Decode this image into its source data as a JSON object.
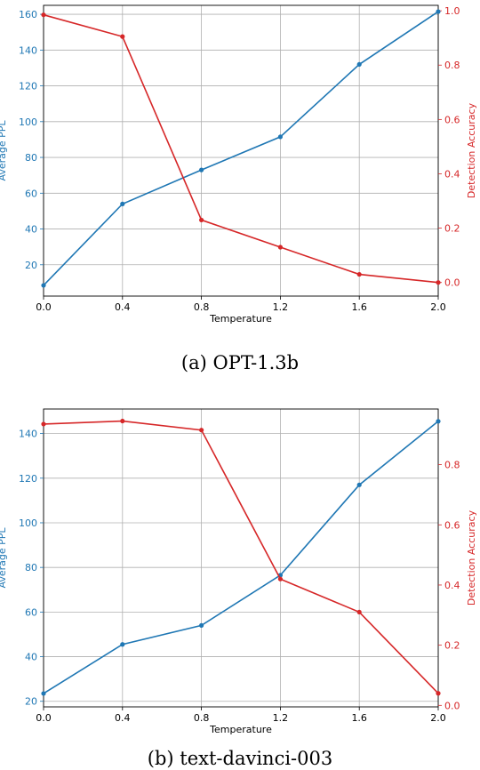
{
  "colors": {
    "ppl": "#1f77b4",
    "acc": "#d62728",
    "grid": "#b0b0b0"
  },
  "chart_data": [
    {
      "type": "line",
      "caption": "(a) OPT-1.3b",
      "xlabel": "Temperature",
      "ylabel_left": "Average PPL",
      "ylabel_right": "Detection Accuracy",
      "x": [
        0.0,
        0.4,
        0.8,
        1.2,
        1.6,
        2.0
      ],
      "x_tick_labels": [
        "0.0",
        "0.4",
        "0.8",
        "1.2",
        "1.6",
        "2.0"
      ],
      "ylim_left": [
        2.5,
        165
      ],
      "yticks_left": [
        "20",
        "40",
        "60",
        "80",
        "100",
        "120",
        "140",
        "160"
      ],
      "ylim_right": [
        -0.05,
        1.02
      ],
      "yticks_right": [
        "0.0",
        "0.2",
        "0.4",
        "0.6",
        "0.8",
        "1.0"
      ],
      "grid": true,
      "series": [
        {
          "axis": "left",
          "color": "#1f77b4",
          "values": [
            8.5,
            54,
            73,
            91.5,
            132,
            161.5
          ]
        },
        {
          "axis": "right",
          "color": "#d62728",
          "values": [
            0.985,
            0.905,
            0.23,
            0.13,
            0.03,
            0.0
          ]
        }
      ]
    },
    {
      "type": "line",
      "caption": "(b) text-davinci-003",
      "xlabel": "Temperature",
      "ylabel_left": "Average PPL",
      "ylabel_right": "Detection Accuracy",
      "x": [
        0.0,
        0.4,
        0.8,
        1.2,
        1.6,
        2.0
      ],
      "x_tick_labels": [
        "0.0",
        "0.4",
        "0.8",
        "1.2",
        "1.6",
        "2.0"
      ],
      "ylim_left": [
        17.5,
        151
      ],
      "yticks_left": [
        "20",
        "40",
        "60",
        "80",
        "100",
        "120",
        "140"
      ],
      "ylim_right": [
        -0.005,
        0.985
      ],
      "yticks_right": [
        "0.0",
        "0.2",
        "0.4",
        "0.6",
        "0.8"
      ],
      "grid": true,
      "series": [
        {
          "axis": "left",
          "color": "#1f77b4",
          "values": [
            23.5,
            45.5,
            54,
            76.5,
            117,
            145.5
          ]
        },
        {
          "axis": "right",
          "color": "#d62728",
          "values": [
            0.935,
            0.945,
            0.915,
            0.42,
            0.31,
            0.04
          ]
        }
      ]
    }
  ]
}
